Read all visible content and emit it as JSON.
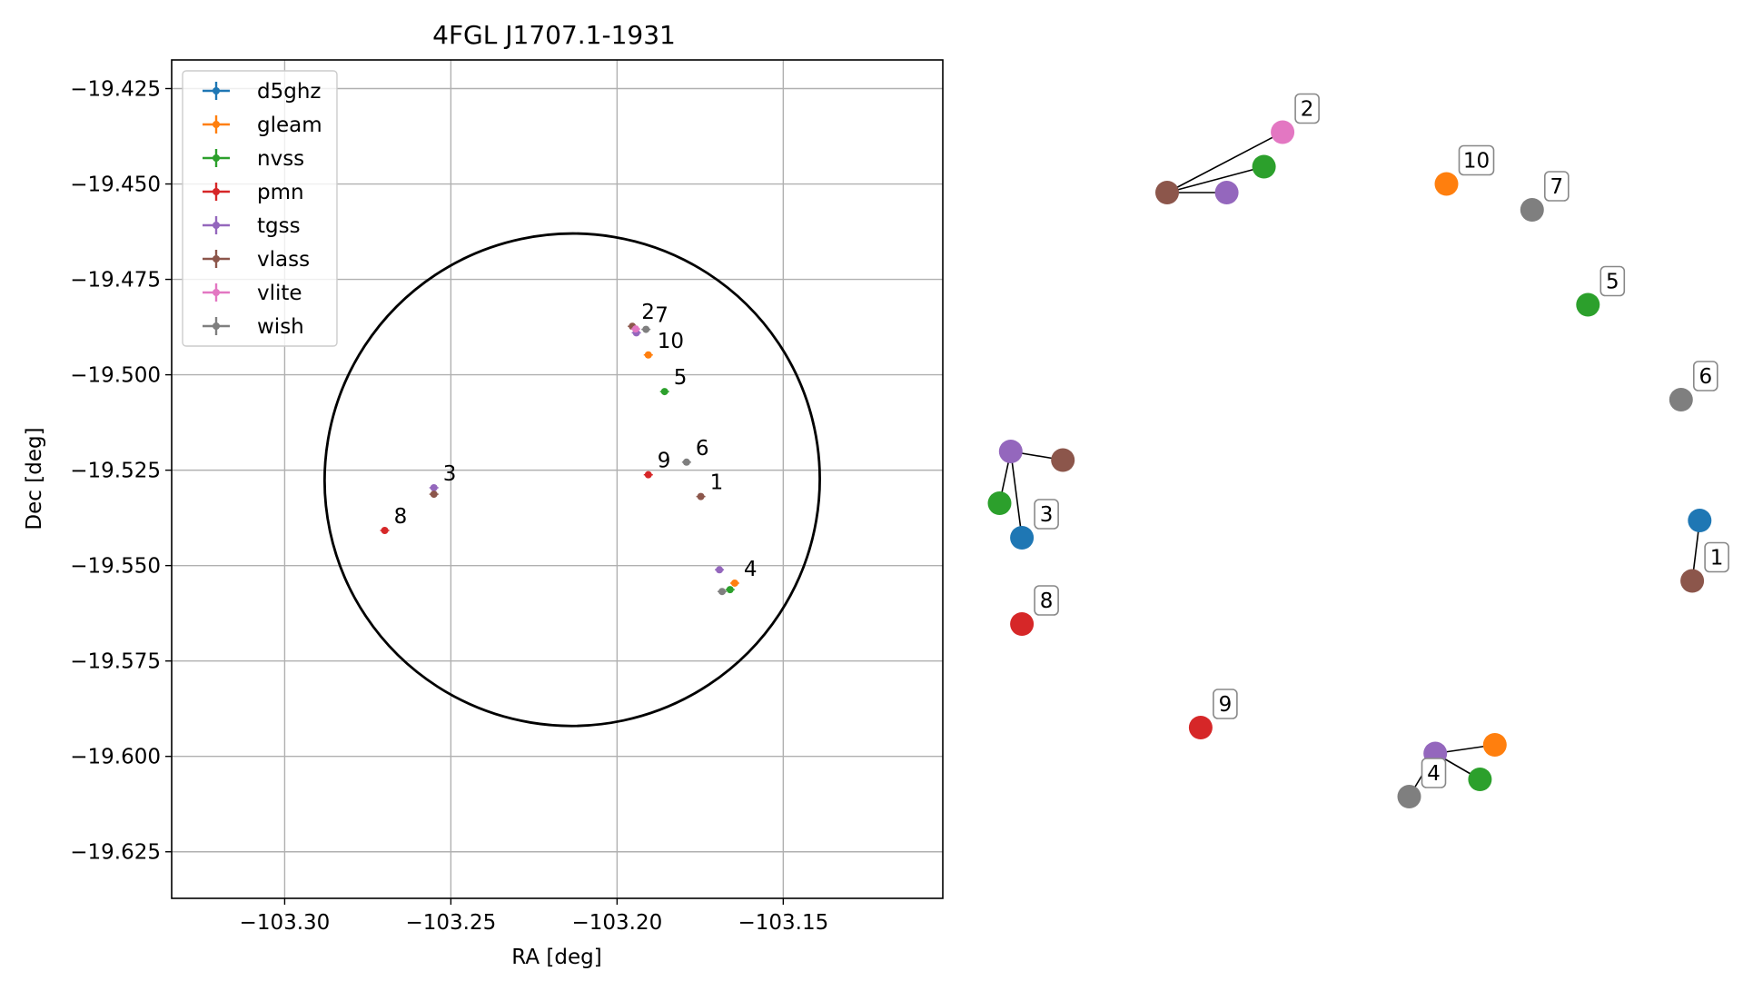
{
  "chart_data": [
    {
      "type": "scatter",
      "title": "4FGL J1707.1-1931",
      "xlabel": "RA [deg]",
      "ylabel": "Dec [deg]",
      "xlim": [
        -103.334,
        -103.102
      ],
      "ylim": [
        -19.6372,
        -19.4175
      ],
      "x_ticks": [
        -103.3,
        -103.25,
        -103.2,
        -103.15
      ],
      "x_tick_labels": [
        "−103.30",
        "−103.25",
        "−103.20",
        "−103.15"
      ],
      "y_ticks": [
        -19.425,
        -19.45,
        -19.475,
        -19.5,
        -19.525,
        -19.55,
        -19.575,
        -19.6,
        -19.625
      ],
      "y_tick_labels": [
        "−19.425",
        "−19.450",
        "−19.475",
        "−19.500",
        "−19.525",
        "−19.550",
        "−19.575",
        "−19.600",
        "−19.625"
      ],
      "grid": true,
      "legend_position": "top-left",
      "series": [
        {
          "name": "d5ghz",
          "color": "#1f77b4",
          "points": []
        },
        {
          "name": "gleam",
          "color": "#ff7f0e",
          "points": [
            [
              -103.1906,
              -19.4948
            ],
            [
              -103.1646,
              -19.5546
            ]
          ]
        },
        {
          "name": "nvss",
          "color": "#2ca02c",
          "points": [
            [
              -103.1857,
              -19.5044
            ],
            [
              -103.166,
              -19.5563
            ]
          ]
        },
        {
          "name": "pmn",
          "color": "#d62728",
          "points": [
            [
              -103.2699,
              -19.5408
            ],
            [
              -103.1906,
              -19.5262
            ]
          ]
        },
        {
          "name": "tgss",
          "color": "#9467bd",
          "points": [
            [
              -103.1942,
              -19.489
            ],
            [
              -103.2551,
              -19.5296
            ],
            [
              -103.1692,
              -19.5511
            ]
          ]
        },
        {
          "name": "vlass",
          "color": "#8c564b",
          "points": [
            [
              -103.1954,
              -19.4873
            ],
            [
              -103.2551,
              -19.5313
            ],
            [
              -103.1748,
              -19.5319
            ]
          ]
        },
        {
          "name": "vlite",
          "color": "#e377c2",
          "points": [
            [
              -103.1944,
              -19.488
            ]
          ]
        },
        {
          "name": "wish",
          "color": "#7f7f7f",
          "points": [
            [
              -103.1913,
              -19.4881
            ],
            [
              -103.1791,
              -19.5229
            ],
            [
              -103.1684,
              -19.5568
            ]
          ]
        }
      ],
      "annotations": [
        {
          "text": "1",
          "x": -103.1748,
          "y": -19.5319
        },
        {
          "text": "2",
          "x": -103.1954,
          "y": -19.4873
        },
        {
          "text": "3",
          "x": -103.2551,
          "y": -19.5296
        },
        {
          "text": "4",
          "x": -103.1646,
          "y": -19.5546
        },
        {
          "text": "5",
          "x": -103.1857,
          "y": -19.5044
        },
        {
          "text": "6",
          "x": -103.1791,
          "y": -19.5229
        },
        {
          "text": "7",
          "x": -103.1913,
          "y": -19.4881
        },
        {
          "text": "8",
          "x": -103.2699,
          "y": -19.5408
        },
        {
          "text": "9",
          "x": -103.1906,
          "y": -19.5262
        },
        {
          "text": "10",
          "x": -103.1906,
          "y": -19.4948
        }
      ],
      "error_ellipse": {
        "center": [
          -103.2135,
          -19.5275
        ],
        "semi_axis_ra": 0.0745,
        "semi_axis_dec": 0.0645
      }
    },
    {
      "type": "scatter",
      "description_free": true,
      "axes_visible": false,
      "groups": [
        {
          "label": "1",
          "members": [
            {
              "catalog": "d5ghz",
              "color": "#1f77b4",
              "x": 0.965,
              "y": 0.54
            },
            {
              "catalog": "vlass",
              "color": "#8c564b",
              "x": 0.955,
              "y": 0.61
            }
          ]
        },
        {
          "label": "2",
          "members": [
            {
              "catalog": "vlass",
              "color": "#8c564b",
              "x": 0.25,
              "y": 0.16
            },
            {
              "catalog": "tgss",
              "color": "#9467bd",
              "x": 0.33,
              "y": 0.16
            },
            {
              "catalog": "nvss",
              "color": "#2ca02c",
              "x": 0.38,
              "y": 0.13
            },
            {
              "catalog": "vlite",
              "color": "#e377c2",
              "x": 0.405,
              "y": 0.09
            }
          ]
        },
        {
          "label": "3",
          "members": [
            {
              "catalog": "tgss",
              "color": "#9467bd",
              "x": 0.04,
              "y": 0.46
            },
            {
              "catalog": "vlass",
              "color": "#8c564b",
              "x": 0.11,
              "y": 0.47
            },
            {
              "catalog": "nvss",
              "color": "#2ca02c",
              "x": 0.025,
              "y": 0.52
            },
            {
              "catalog": "d5ghz",
              "color": "#1f77b4",
              "x": 0.055,
              "y": 0.56
            }
          ]
        },
        {
          "label": "4",
          "members": [
            {
              "catalog": "tgss",
              "color": "#9467bd",
              "x": 0.61,
              "y": 0.81
            },
            {
              "catalog": "gleam",
              "color": "#ff7f0e",
              "x": 0.69,
              "y": 0.8
            },
            {
              "catalog": "nvss",
              "color": "#2ca02c",
              "x": 0.67,
              "y": 0.84
            },
            {
              "catalog": "wish",
              "color": "#7f7f7f",
              "x": 0.575,
              "y": 0.86
            }
          ]
        },
        {
          "label": "5",
          "members": [
            {
              "catalog": "nvss",
              "color": "#2ca02c",
              "x": 0.815,
              "y": 0.29
            }
          ]
        },
        {
          "label": "6",
          "members": [
            {
              "catalog": "wish",
              "color": "#7f7f7f",
              "x": 0.94,
              "y": 0.4
            }
          ]
        },
        {
          "label": "7",
          "members": [
            {
              "catalog": "wish",
              "color": "#7f7f7f",
              "x": 0.74,
              "y": 0.18
            }
          ]
        },
        {
          "label": "8",
          "members": [
            {
              "catalog": "pmn",
              "color": "#d62728",
              "x": 0.055,
              "y": 0.66
            }
          ]
        },
        {
          "label": "9",
          "members": [
            {
              "catalog": "pmn",
              "color": "#d62728",
              "x": 0.295,
              "y": 0.78
            }
          ]
        },
        {
          "label": "10",
          "members": [
            {
              "catalog": "gleam",
              "color": "#ff7f0e",
              "x": 0.625,
              "y": 0.15
            }
          ]
        }
      ]
    }
  ]
}
